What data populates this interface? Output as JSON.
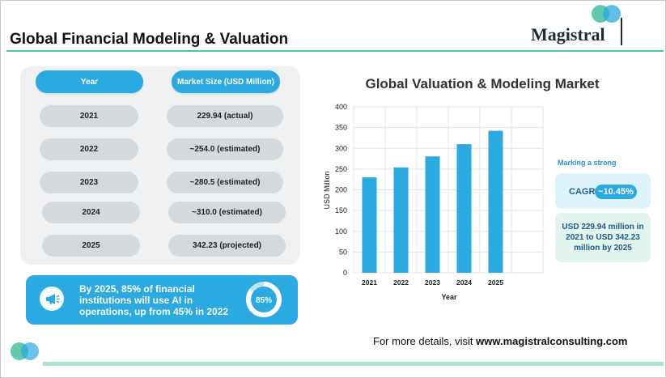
{
  "header": {
    "title": "Global Financial Modeling & Valuation",
    "logo_text": "Magistral"
  },
  "colors": {
    "accent_blue": "#2ba9e1",
    "accent_teal": "#4fc3a6",
    "pill_grey": "#d6d9db",
    "panel_bg": "#eef0f1"
  },
  "table": {
    "headers": [
      "Year",
      "Market Size (USD Million)"
    ],
    "rows": [
      {
        "year": "2021",
        "value": "229.94 (actual)"
      },
      {
        "year": "2022",
        "value": "~254.0 (estimated)"
      },
      {
        "year": "2023",
        "value": "~280.5 (estimated)"
      },
      {
        "year": "2024",
        "value": "~310.0 (estimated)"
      },
      {
        "year": "2025",
        "value": "342.23 (projected)"
      }
    ]
  },
  "stat": {
    "icon": "megaphone-icon",
    "text": "By 2025, 85% of financial institutions will use AI in operations, up from 45% in 2022",
    "percent_label": "85%",
    "percent_value": 85
  },
  "chart_data": {
    "type": "bar",
    "title": "Global Valuation & Modeling Market",
    "categories": [
      "2021",
      "2022",
      "2023",
      "2024",
      "2025"
    ],
    "values": [
      229.94,
      254.0,
      280.5,
      310.0,
      342.23
    ],
    "xlabel": "Year",
    "ylabel": "USD Million",
    "ylim": [
      0,
      400
    ],
    "yticks": [
      0,
      50,
      100,
      150,
      200,
      250,
      300,
      350,
      400
    ],
    "grid": true,
    "bar_color": "#2ba9e1"
  },
  "sidebar": {
    "marking": "Marking a strong",
    "cagr_label": "CAGR",
    "cagr_value": "~10.45%",
    "growth_text": "USD 229.94 million in 2021 to USD 342.23 million by 2025"
  },
  "footer": {
    "prefix": "For more details, visit ",
    "url": "www.magistralconsulting.com"
  }
}
